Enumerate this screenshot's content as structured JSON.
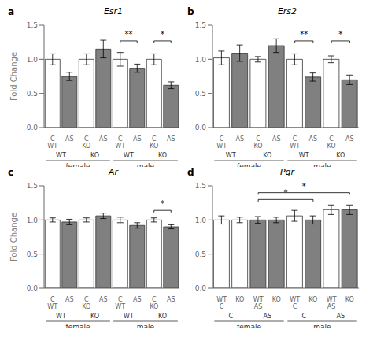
{
  "chart_data": [
    {
      "type": "bar",
      "panel_label": "a",
      "title": "Esr1",
      "ylabel": "Fold Change",
      "categories": [
        "C\nWT",
        "AS",
        "C\nKO",
        "AS",
        "C\nWT",
        "AS",
        "C\nKO",
        "AS"
      ],
      "values": [
        1.0,
        0.75,
        1.0,
        1.15,
        1.0,
        0.87,
        1.0,
        0.62
      ],
      "errors": [
        0.08,
        0.06,
        0.08,
        0.13,
        0.1,
        0.06,
        0.08,
        0.05
      ],
      "colors": [
        "white",
        "#808080",
        "white",
        "#808080",
        "white",
        "#808080",
        "white",
        "#808080"
      ],
      "pair_labels": [
        "WT",
        "KO",
        "WT",
        "KO"
      ],
      "group_labels": [
        "female",
        "male"
      ],
      "annotations": [
        {
          "text": "**",
          "x": [
            4,
            5
          ],
          "y": 1.27
        },
        {
          "text": "*",
          "x": [
            6,
            7
          ],
          "y": 1.27
        }
      ],
      "ylim": [
        0.0,
        1.5
      ],
      "yticks": [
        {
          "value": 0,
          "label": "0.0"
        },
        0.5,
        {
          "value": 1,
          "label": "1.0"
        },
        1.5
      ]
    },
    {
      "type": "bar",
      "panel_label": "b",
      "title": "Ers2",
      "categories": [
        "C\nWT",
        "AS",
        "C\nKO",
        "AS",
        "C\nWT",
        "AS",
        "C\nKO",
        "AS"
      ],
      "values": [
        1.02,
        1.09,
        1.0,
        1.2,
        1.0,
        0.74,
        1.0,
        0.7
      ],
      "errors": [
        0.1,
        0.12,
        0.04,
        0.1,
        0.08,
        0.06,
        0.05,
        0.07
      ],
      "colors": [
        "white",
        "#808080",
        "white",
        "#808080",
        "white",
        "#808080",
        "white",
        "#808080"
      ],
      "pair_labels": [
        "WT",
        "KO",
        "WT",
        "KO"
      ],
      "group_labels": [
        "female",
        "male"
      ],
      "annotations": [
        {
          "text": "**",
          "x": [
            4,
            5
          ],
          "y": 1.27
        },
        {
          "text": "*",
          "x": [
            6,
            7
          ],
          "y": 1.27
        }
      ],
      "ylim": [
        0.0,
        1.5
      ],
      "yticks": [
        {
          "value": 0,
          "label": "0.0"
        },
        0.5,
        {
          "value": 1,
          "label": "1.0"
        },
        1.5
      ]
    },
    {
      "type": "bar",
      "panel_label": "c",
      "title": "Ar",
      "ylabel": "Fold Change",
      "categories": [
        "C\nWT",
        "AS",
        "C\nKO",
        "AS",
        "C\nWT",
        "AS",
        "C\nKO",
        "AS"
      ],
      "values": [
        1.0,
        0.97,
        1.0,
        1.06,
        1.0,
        0.92,
        1.0,
        0.9
      ],
      "errors": [
        0.03,
        0.04,
        0.03,
        0.04,
        0.04,
        0.04,
        0.03,
        0.03
      ],
      "colors": [
        "white",
        "#808080",
        "white",
        "#808080",
        "white",
        "#808080",
        "white",
        "#808080"
      ],
      "pair_labels": [
        "WT",
        "KO",
        "WT",
        "KO"
      ],
      "group_labels": [
        "female",
        "male"
      ],
      "annotations": [
        {
          "text": "*",
          "x": [
            6,
            7
          ],
          "y": 1.14
        }
      ],
      "ylim": [
        0.0,
        1.5
      ],
      "yticks": [
        {
          "value": 0,
          "label": "0.0"
        },
        0.5,
        {
          "value": 1,
          "label": "1.0"
        },
        1.5
      ]
    },
    {
      "type": "bar",
      "panel_label": "d",
      "title": "Pgr",
      "categories": [
        "WT\nC",
        "KO",
        "WT\nAS",
        "KO",
        "WT\nC",
        "KO",
        "WT\nAS",
        "KO"
      ],
      "values": [
        1.0,
        1.0,
        1.0,
        1.0,
        1.06,
        1.0,
        1.15,
        1.15
      ],
      "errors": [
        0.06,
        0.04,
        0.05,
        0.04,
        0.08,
        0.06,
        0.07,
        0.07
      ],
      "colors": [
        "white",
        "white",
        "#808080",
        "#808080",
        "white",
        "#808080",
        "white",
        "#808080"
      ],
      "pair_labels": [
        "C",
        "AS",
        "C",
        "AS"
      ],
      "group_labels": [
        "female",
        "male"
      ],
      "annotations": [
        {
          "text": "*",
          "x": [
            2,
            7
          ],
          "y": 1.4
        },
        {
          "text": "*",
          "x": [
            2,
            5
          ],
          "y": 1.3
        }
      ],
      "ylim": [
        0.0,
        1.5
      ],
      "yticks": [
        {
          "value": 0,
          "label": "0.0"
        },
        0.5,
        {
          "value": 1,
          "label": "1.0"
        },
        1.5
      ]
    }
  ]
}
